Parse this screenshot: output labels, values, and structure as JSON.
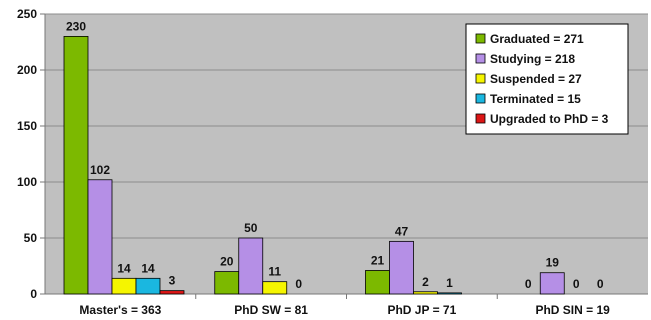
{
  "chart_data": {
    "type": "bar",
    "categories": [
      "Master's = 363",
      "PhD SW = 81",
      "PhD JP = 71",
      "PhD SIN = 19"
    ],
    "series": [
      {
        "name": "Graduated = 271",
        "color": "#7cb900",
        "values": [
          230,
          20,
          21,
          0
        ]
      },
      {
        "name": "Studying = 218",
        "color": "#b58fe6",
        "values": [
          102,
          50,
          47,
          19
        ]
      },
      {
        "name": "Suspended = 27",
        "color": "#f5f500",
        "values": [
          14,
          11,
          2,
          0
        ]
      },
      {
        "name": "Terminated = 15",
        "color": "#1ab7e0",
        "values": [
          14,
          0,
          1,
          0
        ]
      },
      {
        "name": "Upgraded to PhD = 3",
        "color": "#dc1616",
        "values": [
          3,
          0,
          0,
          0
        ]
      }
    ],
    "data_labels": [
      [
        "230",
        "102",
        "14",
        "14",
        "3"
      ],
      [
        "20",
        "50",
        "11",
        "0",
        ""
      ],
      [
        "21",
        "47",
        "2",
        "1",
        ""
      ],
      [
        "0",
        "19",
        "0",
        "0",
        ""
      ]
    ],
    "ylim": [
      0,
      250
    ],
    "yticks": [
      0,
      50,
      100,
      150,
      200,
      250
    ],
    "grid": true,
    "legend_position": "top-right",
    "plot_background": "#c0c0c0"
  }
}
